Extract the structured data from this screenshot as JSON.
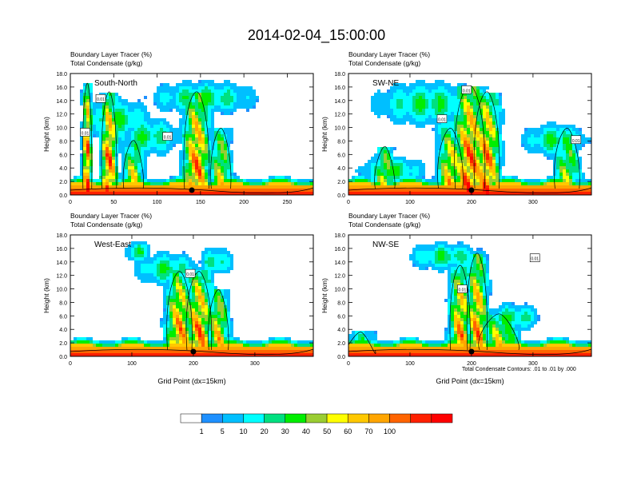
{
  "title": "2014-02-04_15:00:00",
  "panel_header_line1": "Boundary Layer Tracer   (%)",
  "panel_header_line2": "Total Condensate   (g/kg)",
  "footnote": "Total Condensate Contours: .01 to .01 by .000",
  "contour_label": "0.01",
  "colors": {
    "levels": [
      "#ffffff",
      "#1e90ff",
      "#00bfff",
      "#00ffff",
      "#00e080",
      "#00ee00",
      "#9acd32",
      "#ffff00",
      "#ffc800",
      "#ffa500",
      "#ff6400",
      "#ff2000",
      "#ff0000"
    ],
    "contour": "#000000",
    "marker": "#000000"
  },
  "chart_data": [
    {
      "type": "heatmap",
      "panel_label": "South-North",
      "ylabel": "Height (km)",
      "xlabel": "",
      "x_ticks": [
        0,
        50,
        100,
        150,
        200,
        250
      ],
      "x_range": [
        0,
        280
      ],
      "y_ticks": [
        "0.0",
        "2.0",
        "4.0",
        "6.0",
        "8.0",
        "10.0",
        "12.0",
        "14.0",
        "16.0",
        "18.0"
      ],
      "y_range": [
        0,
        18
      ],
      "marker_x": 140,
      "contour_label_points": [
        [
          17,
          9.3
        ],
        [
          35,
          14.3
        ],
        [
          112,
          8.7
        ]
      ]
    },
    {
      "type": "heatmap",
      "panel_label": "SW-NE",
      "ylabel": "Height (km)",
      "xlabel": "",
      "x_ticks": [
        0,
        100,
        200,
        300
      ],
      "x_range": [
        0,
        395
      ],
      "y_ticks": [
        "0.0",
        "2.0",
        "4.0",
        "6.0",
        "8.0",
        "10.0",
        "12.0",
        "14.0",
        "16.0",
        "18.0"
      ],
      "y_range": [
        0,
        18
      ],
      "marker_x": 200,
      "contour_label_points": [
        [
          152,
          11.3
        ],
        [
          192,
          15.6
        ],
        [
          370,
          8.2
        ]
      ]
    },
    {
      "type": "heatmap",
      "panel_label": "West-East",
      "ylabel": "Height (km)",
      "xlabel": "Grid Point (dx=15km)",
      "x_ticks": [
        0,
        100,
        200,
        300
      ],
      "x_range": [
        0,
        395
      ],
      "y_ticks": [
        "0.0",
        "2.0",
        "4.0",
        "6.0",
        "8.0",
        "10.0",
        "12.0",
        "14.0",
        "16.0",
        "18.0"
      ],
      "y_range": [
        0,
        18
      ],
      "marker_x": 200,
      "contour_label_points": [
        [
          195,
          12.3
        ]
      ]
    },
    {
      "type": "heatmap",
      "panel_label": "NW-SE",
      "ylabel": "Height (km)",
      "xlabel": "Grid Point (dx=15km)",
      "x_ticks": [
        0,
        100,
        200,
        300
      ],
      "x_range": [
        0,
        395
      ],
      "y_ticks": [
        "0.0",
        "2.0",
        "4.0",
        "6.0",
        "8.0",
        "10.0",
        "12.0",
        "14.0",
        "16.0",
        "18.0"
      ],
      "y_range": [
        0,
        18
      ],
      "marker_x": 200,
      "contour_label_points": [
        [
          185,
          10.0
        ],
        [
          303,
          14.6
        ]
      ]
    }
  ],
  "colorbar": {
    "tick_labels": [
      "1",
      "5",
      "10",
      "20",
      "30",
      "40",
      "50",
      "60",
      "70",
      "100"
    ]
  }
}
